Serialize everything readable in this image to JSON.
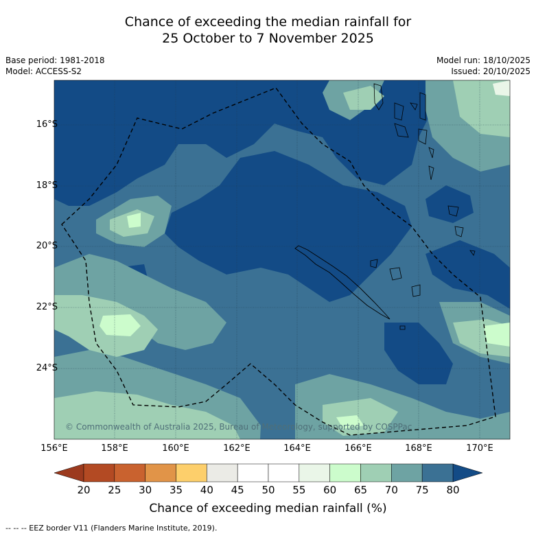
{
  "title": {
    "line1": "Chance of exceeding the median rainfall for",
    "line2": "25 October to 7 November 2025"
  },
  "info_left": {
    "base_period": "Base period: 1981-2018",
    "model": "Model: ACCESS-S2"
  },
  "info_right": {
    "model_run": "Model run: 18/10/2025",
    "issued": "Issued: 20/10/2025"
  },
  "map": {
    "lat_labels": [
      "16°S",
      "18°S",
      "20°S",
      "22°S",
      "24°S"
    ],
    "lon_labels": [
      "156°E",
      "158°E",
      "160°E",
      "162°E",
      "164°E",
      "166°E",
      "168°E",
      "170°E"
    ],
    "copyright": "© Commonwealth of Australia 2025, Bureau of Meteorology, supported by COSPPac"
  },
  "colorbar": {
    "ticks": [
      "20",
      "25",
      "30",
      "35",
      "40",
      "45",
      "50",
      "55",
      "60",
      "65",
      "70",
      "75",
      "80"
    ],
    "colors": [
      "#b34a23",
      "#c9622f",
      "#e19448",
      "#fdcf6b",
      "#ebebe6",
      "#ffffff",
      "#ffffff",
      "#eaf6e8",
      "#ccfccc",
      "#9fcfb4",
      "#6ea3a3",
      "#3b7194"
    ],
    "under_color": "#9c3a1e",
    "over_color": "#134b86",
    "title": "Chance of exceeding median rainfall (%)"
  },
  "legend": {
    "eez_text": "--  --  -- EEZ border V11 (Flanders Marine Institute, 2019)."
  },
  "palette": {
    "deep": "#134b86",
    "blue": "#3b7194",
    "teal": "#6ea3a3",
    "green": "#9fcfb4",
    "light": "#ccfccc"
  }
}
